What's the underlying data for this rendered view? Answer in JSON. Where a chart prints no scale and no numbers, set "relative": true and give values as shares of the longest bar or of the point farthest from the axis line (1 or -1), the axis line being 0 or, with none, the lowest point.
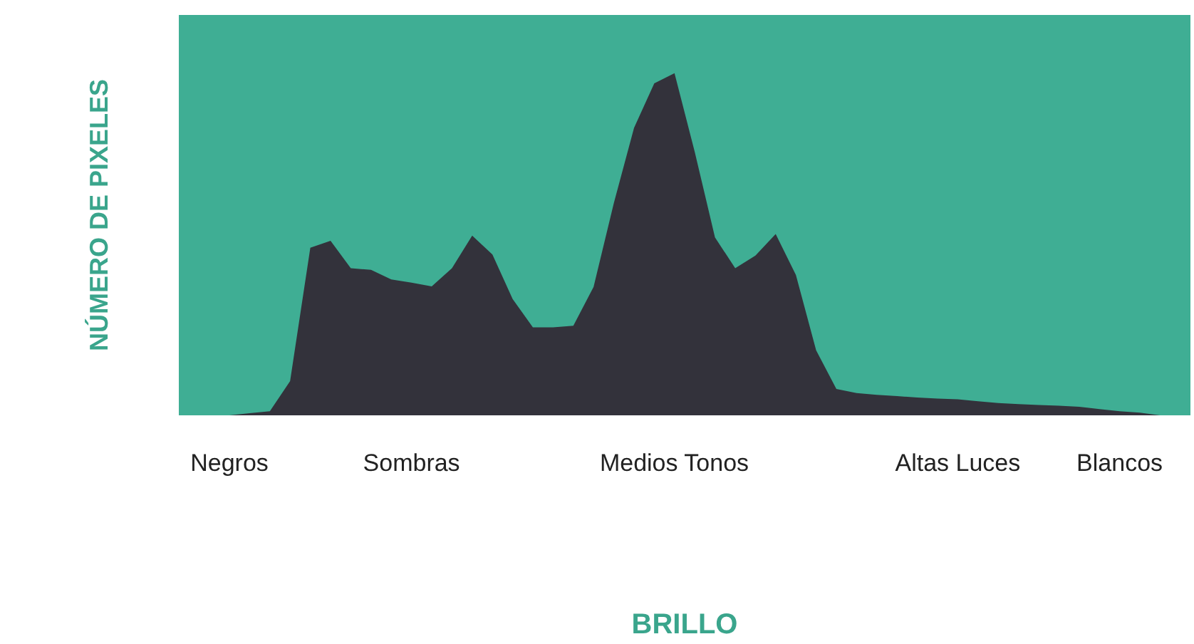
{
  "chart_data": {
    "type": "area",
    "relative": true,
    "xlabel": "BRILLO",
    "ylabel": "NÚMERO DE PIXELES",
    "color": "#33323b",
    "categories": [
      null,
      null,
      "Negros",
      null,
      null,
      null,
      null,
      null,
      null,
      null,
      null,
      "Sombras",
      null,
      null,
      null,
      null,
      null,
      null,
      null,
      null,
      null,
      null,
      null,
      null,
      "Medios Tonos",
      null,
      null,
      null,
      null,
      null,
      null,
      null,
      null,
      null,
      null,
      null,
      null,
      null,
      "Altas Luces",
      null,
      null,
      null,
      null,
      null,
      null,
      null,
      "Blancos",
      null,
      null,
      null
    ],
    "values": [
      0,
      0,
      0,
      0.006,
      0.012,
      0.1,
      0.49,
      0.51,
      0.43,
      0.425,
      0.397,
      0.388,
      0.377,
      0.43,
      0.525,
      0.47,
      0.34,
      0.257,
      0.257,
      0.262,
      0.375,
      0.62,
      0.84,
      0.97,
      1,
      0.77,
      0.52,
      0.43,
      0.467,
      0.53,
      0.41,
      0.19,
      0.077,
      0.065,
      0.06,
      0.056,
      0.052,
      0.049,
      0.047,
      0.041,
      0.036,
      0.033,
      0.03,
      0.028,
      0.025,
      0.018,
      0.012,
      0.008,
      0,
      0
    ],
    "tick_labels": "x",
    "grid": false
  }
}
